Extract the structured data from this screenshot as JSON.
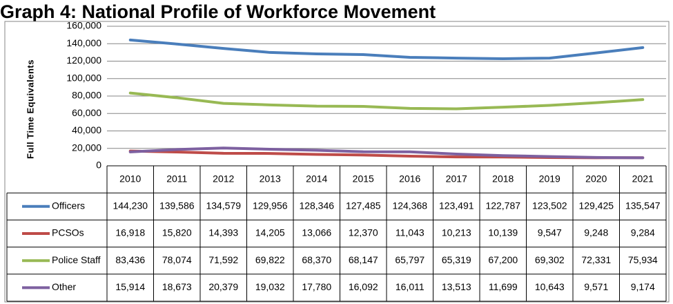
{
  "chart_data": {
    "type": "line",
    "title": "Graph 4: National Profile of Workforce Movement",
    "y_label": "Full Time Equivalents",
    "categories": [
      "2010",
      "2011",
      "2012",
      "2013",
      "2014",
      "2015",
      "2016",
      "2017",
      "2018",
      "2019",
      "2020",
      "2021"
    ],
    "series": [
      {
        "name": "Officers",
        "color": "#4a7ebb",
        "values": [
          144230,
          139586,
          134579,
          129956,
          128346,
          127485,
          124368,
          123491,
          122787,
          123502,
          129425,
          135547
        ],
        "value_labels": [
          "144,230",
          "139,586",
          "134,579",
          "129,956",
          "128,346",
          "127,485",
          "124,368",
          "123,491",
          "122,787",
          "123,502",
          "129,425",
          "135,547"
        ]
      },
      {
        "name": "PCSOs",
        "color": "#be4b48",
        "values": [
          16918,
          15820,
          14393,
          14205,
          13066,
          12370,
          11043,
          10213,
          10139,
          9547,
          9248,
          9284
        ],
        "value_labels": [
          "16,918",
          "15,820",
          "14,393",
          "14,205",
          "13,066",
          "12,370",
          "11,043",
          "10,213",
          "10,139",
          "9,547",
          "9,248",
          "9,284"
        ]
      },
      {
        "name": "Police Staff",
        "color": "#98b954",
        "values": [
          83436,
          78074,
          71592,
          69822,
          68370,
          68147,
          65797,
          65319,
          67200,
          69302,
          72331,
          75934
        ],
        "value_labels": [
          "83,436",
          "78,074",
          "71,592",
          "69,822",
          "68,370",
          "68,147",
          "65,797",
          "65,319",
          "67,200",
          "69,302",
          "72,331",
          "75,934"
        ]
      },
      {
        "name": "Other",
        "color": "#7d60a0",
        "values": [
          15914,
          18673,
          20379,
          19032,
          17780,
          16092,
          16011,
          13513,
          11699,
          10643,
          9571,
          9174
        ],
        "value_labels": [
          "15,914",
          "18,673",
          "20,379",
          "19,032",
          "17,780",
          "16,092",
          "16,011",
          "13,513",
          "11,699",
          "10,643",
          "9,571",
          "9,174"
        ]
      }
    ],
    "ylim": [
      0,
      160000
    ],
    "yticks": [
      0,
      {
        "value": 20000,
        "label": "20,000"
      },
      {
        "value": 40000,
        "label": "40,000"
      },
      {
        "value": 60000,
        "label": "60,000"
      },
      {
        "value": 80000,
        "label": "80,000"
      },
      {
        "value": 100000,
        "label": "100,000"
      },
      {
        "value": 120000,
        "label": "120,000"
      },
      {
        "value": 140000,
        "label": "140,000"
      },
      {
        "value": 160000,
        "label": "160,000"
      }
    ],
    "grid": true
  }
}
